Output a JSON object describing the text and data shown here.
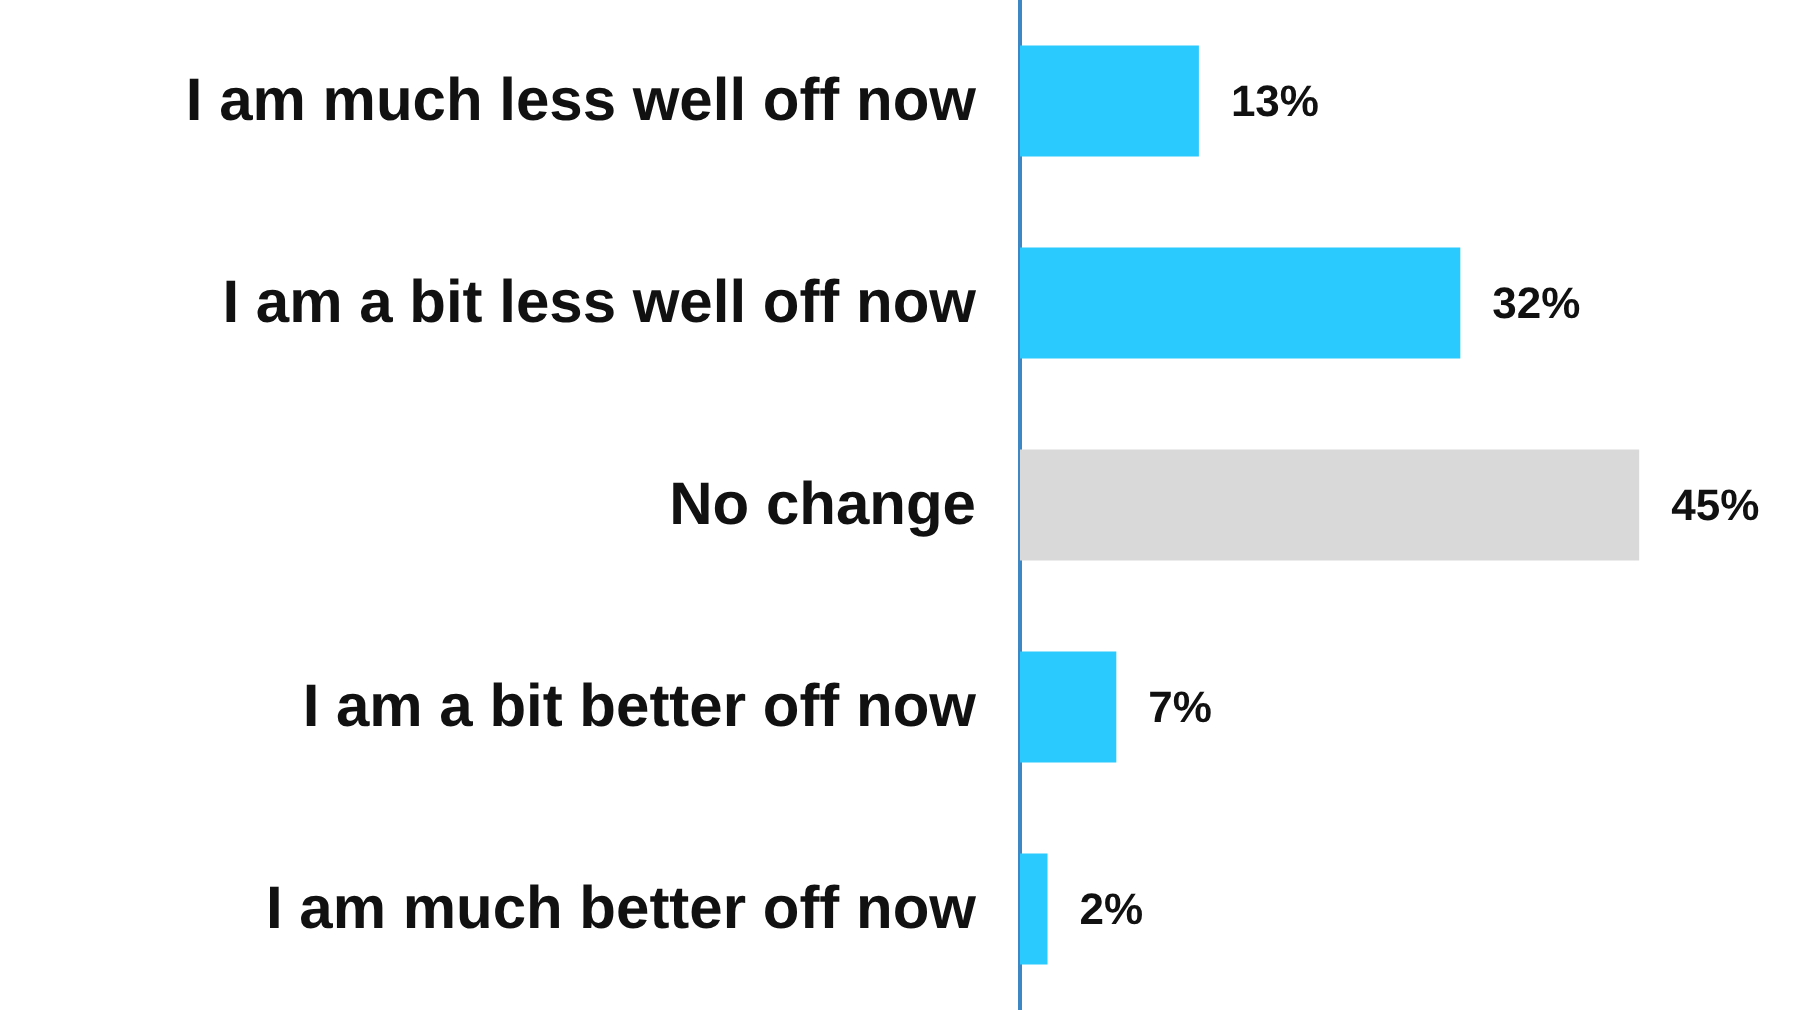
{
  "chart_data": {
    "type": "bar",
    "orientation": "horizontal",
    "categories": [
      "I am much less well off now",
      "I am a bit less well off now",
      "No change",
      "I am a bit better off now",
      "I am much better off now"
    ],
    "values": [
      13,
      32,
      45,
      7,
      2
    ],
    "colors": [
      "#2ac9fe",
      "#2ac9fe",
      "#d9d9d9",
      "#2ac9fe",
      "#2ac9fe"
    ],
    "value_labels": [
      "13%",
      "32%",
      "45%",
      "7%",
      "2%"
    ]
  }
}
